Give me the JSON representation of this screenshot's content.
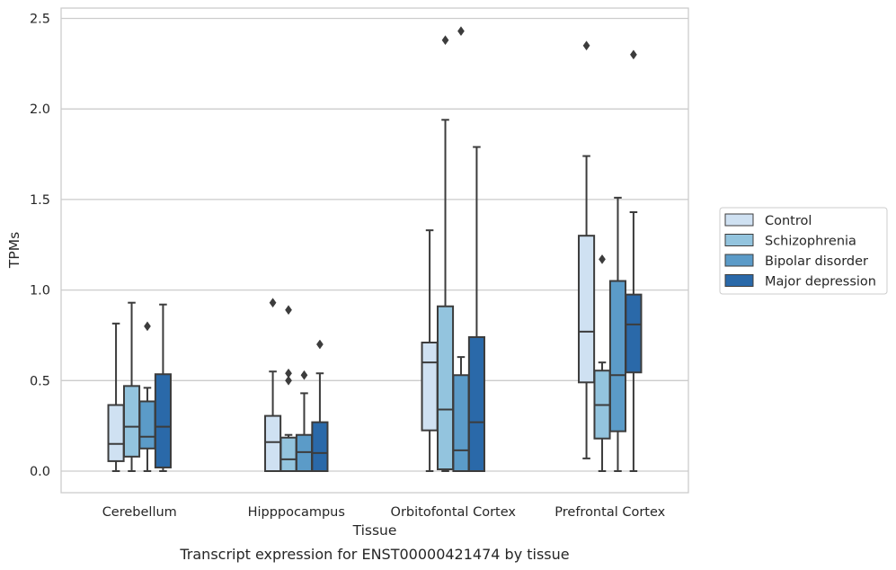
{
  "chart_data": {
    "type": "box",
    "title": "",
    "caption": "Transcript expression for ENST00000421474 by tissue",
    "xlabel": "Tissue",
    "ylabel": "TPMs",
    "ylim": [
      -0.12,
      2.56
    ],
    "yticks": [
      "0.0",
      "0.5",
      "1.0",
      "1.5",
      "2.0",
      "2.5"
    ],
    "grid": "horizontal",
    "legend_position": "right",
    "categories": [
      "Cerebellum",
      "Hipppocampus",
      "Orbitofontal Cortex",
      "Prefrontal Cortex"
    ],
    "series": [
      {
        "name": "Control",
        "color": "#cfe1f2",
        "boxes": [
          {
            "whislo": 0.0,
            "q1": 0.055,
            "med": 0.15,
            "q3": 0.365,
            "whishi": 0.815,
            "fliers": []
          },
          {
            "whislo": 0.0,
            "q1": 0.0,
            "med": 0.16,
            "q3": 0.305,
            "whishi": 0.55,
            "fliers": [
              0.93
            ]
          },
          {
            "whislo": 0.0,
            "q1": 0.225,
            "med": 0.6,
            "q3": 0.71,
            "whishi": 1.33,
            "fliers": []
          },
          {
            "whislo": 0.07,
            "q1": 0.49,
            "med": 0.77,
            "q3": 1.3,
            "whishi": 1.74,
            "fliers": [
              2.35
            ]
          }
        ]
      },
      {
        "name": "Schizophrenia",
        "color": "#93c4de",
        "boxes": [
          {
            "whislo": 0.0,
            "q1": 0.08,
            "med": 0.245,
            "q3": 0.47,
            "whishi": 0.93,
            "fliers": []
          },
          {
            "whislo": 0.0,
            "q1": 0.0,
            "med": 0.065,
            "q3": 0.185,
            "whishi": 0.2,
            "fliers": [
              0.5,
              0.54,
              0.89
            ]
          },
          {
            "whislo": 0.0,
            "q1": 0.01,
            "med": 0.34,
            "q3": 0.91,
            "whishi": 1.94,
            "fliers": [
              2.38
            ]
          },
          {
            "whislo": 0.0,
            "q1": 0.18,
            "med": 0.365,
            "q3": 0.555,
            "whishi": 0.6,
            "fliers": [
              1.17
            ]
          }
        ]
      },
      {
        "name": "Bipolar disorder",
        "color": "#5b9bc8",
        "boxes": [
          {
            "whislo": 0.0,
            "q1": 0.125,
            "med": 0.19,
            "q3": 0.385,
            "whishi": 0.46,
            "fliers": [
              0.8
            ]
          },
          {
            "whislo": 0.0,
            "q1": 0.0,
            "med": 0.105,
            "q3": 0.2,
            "whishi": 0.43,
            "fliers": [
              0.53
            ]
          },
          {
            "whislo": 0.0,
            "q1": 0.0,
            "med": 0.115,
            "q3": 0.53,
            "whishi": 0.63,
            "fliers": [
              2.43
            ]
          },
          {
            "whislo": 0.0,
            "q1": 0.22,
            "med": 0.53,
            "q3": 1.05,
            "whishi": 1.51,
            "fliers": []
          }
        ]
      },
      {
        "name": "Major depression",
        "color": "#2a69a9",
        "boxes": [
          {
            "whislo": 0.0,
            "q1": 0.02,
            "med": 0.245,
            "q3": 0.535,
            "whishi": 0.92,
            "fliers": []
          },
          {
            "whislo": 0.0,
            "q1": 0.0,
            "med": 0.1,
            "q3": 0.27,
            "whishi": 0.54,
            "fliers": [
              0.7
            ]
          },
          {
            "whislo": 0.0,
            "q1": 0.0,
            "med": 0.27,
            "q3": 0.74,
            "whishi": 1.79,
            "fliers": []
          },
          {
            "whislo": 0.0,
            "q1": 0.545,
            "med": 0.81,
            "q3": 0.975,
            "whishi": 1.43,
            "fliers": [
              2.3
            ]
          }
        ]
      }
    ]
  }
}
